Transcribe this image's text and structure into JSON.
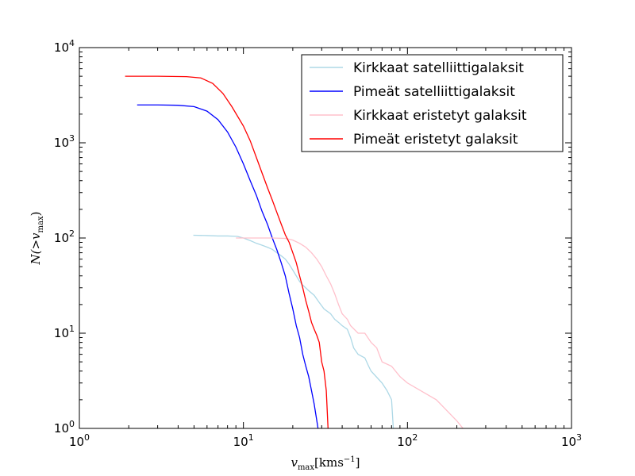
{
  "chart_data": {
    "type": "line",
    "xscale": "log",
    "yscale": "log",
    "xlim": [
      1,
      1000
    ],
    "ylim": [
      1,
      10000
    ],
    "xlabel": "v_max[kms^-1]",
    "ylabel": "N(>v_max)",
    "xlabel_parts": {
      "v": "v",
      "sub": "max",
      "unit": "[kms",
      "exp": "−1",
      "close": "]"
    },
    "ylabel_parts": {
      "pre": "N(>",
      "v": "v",
      "sub": "max",
      "post": ")"
    },
    "x_ticks": [
      {
        "value": 1,
        "base": "10",
        "exp": "0"
      },
      {
        "value": 10,
        "base": "10",
        "exp": "1"
      },
      {
        "value": 100,
        "base": "10",
        "exp": "2"
      },
      {
        "value": 1000,
        "base": "10",
        "exp": "3"
      }
    ],
    "y_ticks": [
      {
        "value": 1,
        "base": "10",
        "exp": "0"
      },
      {
        "value": 10,
        "base": "10",
        "exp": "1"
      },
      {
        "value": 100,
        "base": "10",
        "exp": "2"
      },
      {
        "value": 1000,
        "base": "10",
        "exp": "3"
      },
      {
        "value": 10000,
        "base": "10",
        "exp": "4"
      }
    ],
    "legend_position": "top-right",
    "series": [
      {
        "name": "Kirkkaat satelliittigalaksit",
        "color": "#add8e6",
        "points": [
          [
            4.95,
            107
          ],
          [
            6,
            106
          ],
          [
            7,
            105
          ],
          [
            8,
            105
          ],
          [
            9.2,
            104
          ],
          [
            10,
            100
          ],
          [
            11,
            94
          ],
          [
            12,
            88
          ],
          [
            13,
            84
          ],
          [
            14,
            80
          ],
          [
            15,
            76
          ],
          [
            16,
            70
          ],
          [
            17,
            65
          ],
          [
            18,
            60
          ],
          [
            19,
            53
          ],
          [
            20,
            46
          ],
          [
            21,
            40
          ],
          [
            22,
            35
          ],
          [
            23,
            32
          ],
          [
            25,
            28
          ],
          [
            27,
            25
          ],
          [
            29,
            21
          ],
          [
            31,
            18
          ],
          [
            34,
            16
          ],
          [
            36,
            14
          ],
          [
            38,
            13
          ],
          [
            40,
            12
          ],
          [
            43,
            11
          ],
          [
            45,
            9
          ],
          [
            47,
            7
          ],
          [
            50,
            6
          ],
          [
            55,
            5.5
          ],
          [
            58,
            4.5
          ],
          [
            60,
            4
          ],
          [
            70,
            3
          ],
          [
            75,
            2.5
          ],
          [
            80,
            2
          ],
          [
            82,
            1
          ]
        ]
      },
      {
        "name": "Pimeät satelliittigalaksit",
        "color": "#0000ff",
        "points": [
          [
            2.25,
            2500
          ],
          [
            3,
            2500
          ],
          [
            4,
            2480
          ],
          [
            5,
            2400
          ],
          [
            6,
            2150
          ],
          [
            7,
            1750
          ],
          [
            8,
            1300
          ],
          [
            9,
            900
          ],
          [
            10,
            600
          ],
          [
            11,
            400
          ],
          [
            12,
            280
          ],
          [
            13,
            190
          ],
          [
            14,
            140
          ],
          [
            15,
            100
          ],
          [
            16,
            75
          ],
          [
            17,
            55
          ],
          [
            18,
            40
          ],
          [
            19,
            26
          ],
          [
            20,
            18
          ],
          [
            21,
            12
          ],
          [
            22,
            9
          ],
          [
            23,
            6
          ],
          [
            24,
            4.5
          ],
          [
            25,
            3.5
          ],
          [
            26,
            2.5
          ],
          [
            27,
            1.8
          ],
          [
            28.5,
            1
          ]
        ]
      },
      {
        "name": "Kirkkaat eristetyt galaksit",
        "color": "#ffc0cb",
        "points": [
          [
            9,
            100
          ],
          [
            12,
            100
          ],
          [
            15,
            100
          ],
          [
            18,
            99
          ],
          [
            20,
            95
          ],
          [
            22,
            88
          ],
          [
            24,
            80
          ],
          [
            26,
            70
          ],
          [
            28,
            60
          ],
          [
            30,
            50
          ],
          [
            32,
            40
          ],
          [
            34,
            33
          ],
          [
            36,
            26
          ],
          [
            38,
            20
          ],
          [
            40,
            16
          ],
          [
            43,
            14
          ],
          [
            45,
            12
          ],
          [
            50,
            10
          ],
          [
            55,
            10
          ],
          [
            60,
            8
          ],
          [
            65,
            7
          ],
          [
            70,
            5
          ],
          [
            80,
            4.5
          ],
          [
            90,
            3.5
          ],
          [
            100,
            3
          ],
          [
            150,
            2
          ],
          [
            200,
            1.2
          ],
          [
            218,
            1
          ]
        ]
      },
      {
        "name": "Pimeät eristetyt galaksit",
        "color": "#ff0000",
        "points": [
          [
            1.9,
            5000
          ],
          [
            3,
            5000
          ],
          [
            4.5,
            4950
          ],
          [
            5.5,
            4800
          ],
          [
            6.5,
            4200
          ],
          [
            7.5,
            3300
          ],
          [
            8.5,
            2400
          ],
          [
            10,
            1500
          ],
          [
            11,
            1050
          ],
          [
            12,
            700
          ],
          [
            13,
            480
          ],
          [
            14,
            340
          ],
          [
            15,
            250
          ],
          [
            16,
            185
          ],
          [
            17,
            140
          ],
          [
            18,
            108
          ],
          [
            19,
            90
          ],
          [
            20,
            70
          ],
          [
            21,
            55
          ],
          [
            22,
            40
          ],
          [
            23,
            30
          ],
          [
            24,
            22
          ],
          [
            25,
            17
          ],
          [
            26,
            13
          ],
          [
            27,
            11
          ],
          [
            28,
            9.5
          ],
          [
            29,
            8
          ],
          [
            30,
            5
          ],
          [
            31,
            4
          ],
          [
            32,
            2.5
          ],
          [
            32.8,
            1
          ]
        ]
      }
    ]
  }
}
